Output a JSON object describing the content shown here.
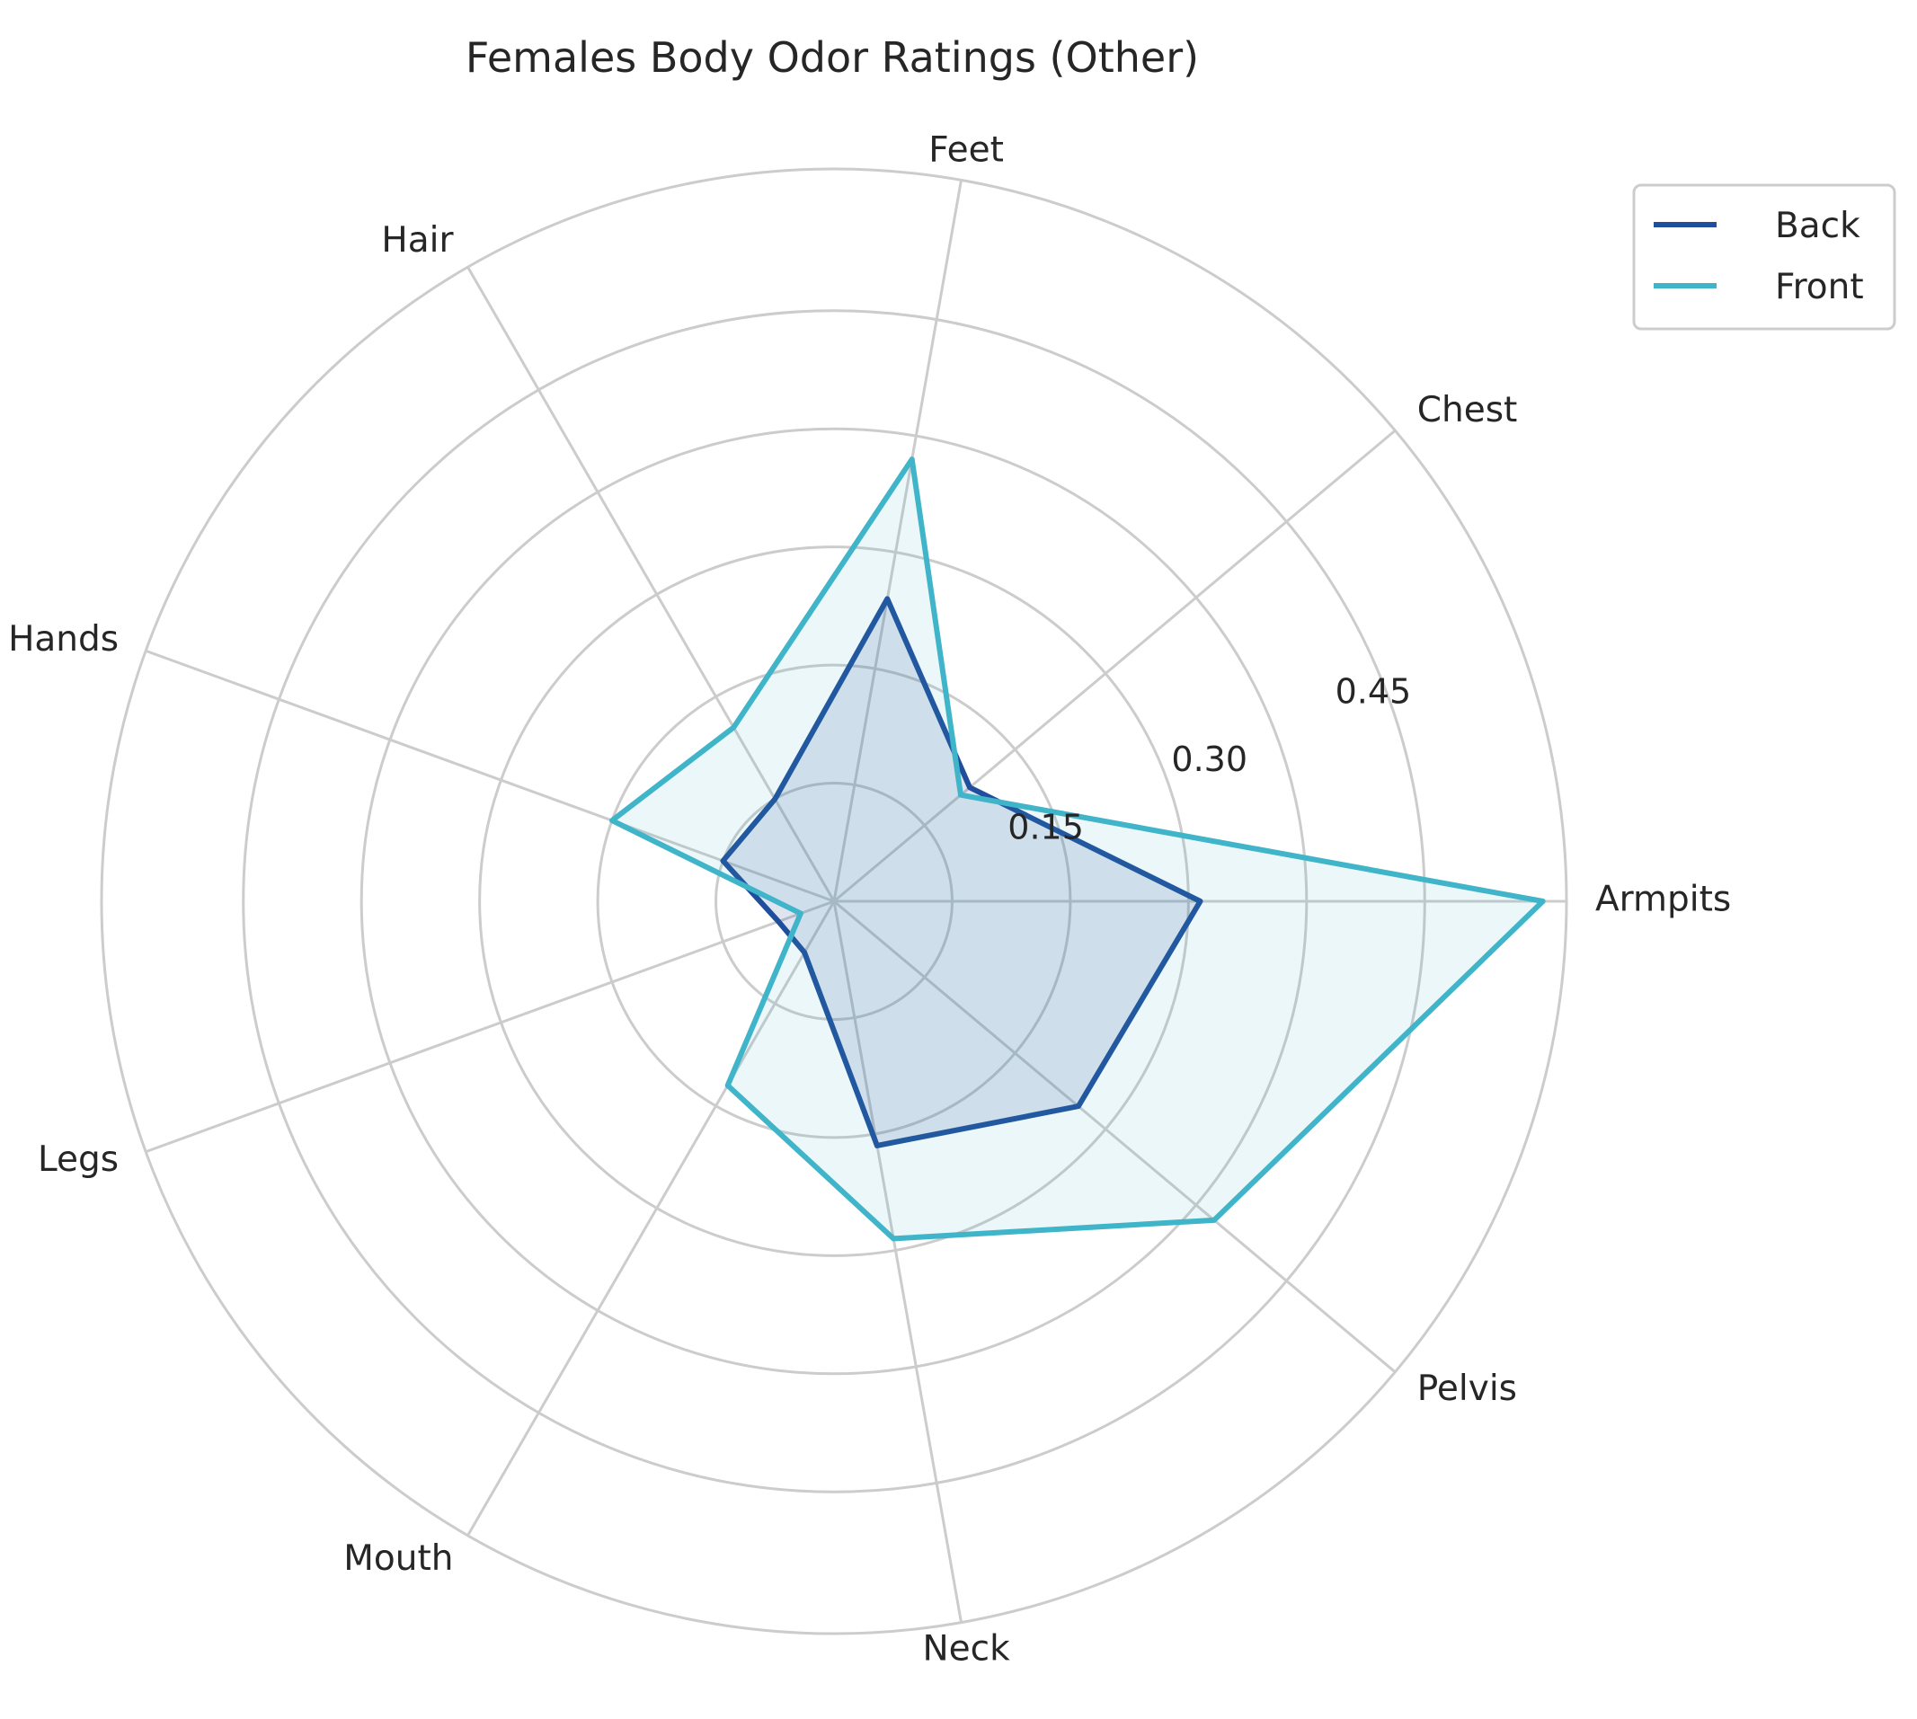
{
  "chart_data": {
    "type": "radar",
    "title": "Females Body Odor Ratings (Other)",
    "categories": [
      "Armpits",
      "Chest",
      "Feet",
      "Hair",
      "Hands",
      "Legs",
      "Mouth",
      "Neck",
      "Pelvis"
    ],
    "radial_ticks": [
      {
        "value": 0.15,
        "label": "0.15"
      },
      {
        "value": 0.3,
        "label": "0.30"
      },
      {
        "value": 0.45,
        "label": "0.45"
      }
    ],
    "rlim": [
      0,
      0.62
    ],
    "grid": true,
    "legend_position": "top-right",
    "series": [
      {
        "name": "Back",
        "color": "#1f4e9c",
        "fill_opacity": 0.15,
        "values": [
          0.31,
          0.15,
          0.26,
          0.1,
          0.1,
          0.05,
          0.05,
          0.21,
          0.27
        ]
      },
      {
        "name": "Front",
        "color": "#40b4c8",
        "fill_opacity": 0.1,
        "values": [
          0.6,
          0.14,
          0.38,
          0.17,
          0.2,
          0.03,
          0.18,
          0.29,
          0.42
        ]
      }
    ]
  }
}
